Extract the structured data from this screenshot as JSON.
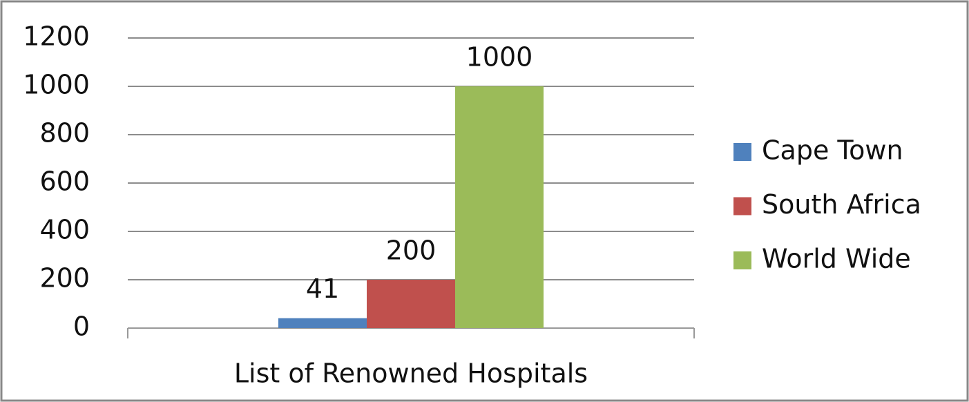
{
  "chart_data": {
    "type": "bar",
    "categories": [
      "List of Renowned Hospitals"
    ],
    "series": [
      {
        "name": "Cape Town",
        "color": "#4f81bd",
        "values": [
          41
        ]
      },
      {
        "name": "South Africa",
        "color": "#c0504d",
        "values": [
          200
        ]
      },
      {
        "name": "World Wide",
        "color": "#9bbb59",
        "values": [
          1000
        ]
      }
    ],
    "ylim": [
      0,
      1200
    ],
    "yticks": [
      0,
      200,
      400,
      600,
      800,
      1000,
      1200
    ],
    "grid": true,
    "legend": "right"
  }
}
